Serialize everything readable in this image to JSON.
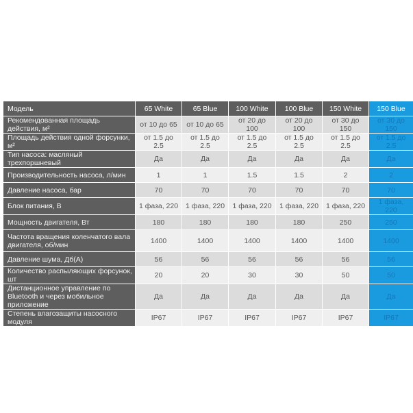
{
  "table": {
    "header": [
      "Модель",
      "65 White",
      "65 Blue",
      "100 White",
      "100 Blue",
      "150 White",
      "150 Blue"
    ],
    "highlight_color": "#1a9be0",
    "rows": [
      {
        "label": "Рекомендованная площадь действия, м²",
        "values": [
          "от 10 до 65",
          "от 10 до 65",
          "от 20 до 100",
          "от 20 до 100",
          "от 30 до 150",
          "от 30 до 150"
        ]
      },
      {
        "label": "Площадь действия одной форсунки, м²",
        "values": [
          "от 1.5 до 2.5",
          "от 1.5 до 2.5",
          "от 1.5 до 2.5",
          "от 1.5 до 2.5",
          "от 1.5 до 2.5",
          "от 1.5 до 2.5"
        ]
      },
      {
        "label": "Тип насоса: масляный трехпоршневый",
        "values": [
          "Да",
          "Да",
          "Да",
          "Да",
          "Да",
          "Да"
        ]
      },
      {
        "label": "Производительность насоса, л/мин",
        "values": [
          "1",
          "1",
          "1.5",
          "1.5",
          "2",
          "2"
        ]
      },
      {
        "label": "Давление насоса, бар",
        "values": [
          "70",
          "70",
          "70",
          "70",
          "70",
          "70"
        ]
      },
      {
        "label": "Блок питания, В",
        "values": [
          "1 фаза, 220",
          "1 фаза, 220",
          "1 фаза, 220",
          "1 фаза, 220",
          "1 фаза, 220",
          "1 фаза, 220"
        ]
      },
      {
        "label": "Мощность двигателя, Вт",
        "values": [
          "180",
          "180",
          "180",
          "180",
          "250",
          "250"
        ]
      },
      {
        "label": "Частота вращения коленчатого вала двигателя, об/мин",
        "values": [
          "1400",
          "1400",
          "1400",
          "1400",
          "1400",
          "1400"
        ]
      },
      {
        "label": "Давление шума, Дб(А)",
        "values": [
          "56",
          "56",
          "56",
          "56",
          "56",
          "56"
        ]
      },
      {
        "label": "Количество распыляющих форсунок, шт",
        "values": [
          "20",
          "20",
          "30",
          "30",
          "50",
          "50"
        ]
      },
      {
        "label": "Дистанционное управление по Bluetooth и через мобильное приложение",
        "values": [
          "Да",
          "Да",
          "Да",
          "Да",
          "Да",
          "Да"
        ]
      },
      {
        "label": "Степень влагозащиты насосного модуля",
        "values": [
          "IP67",
          "IP67",
          "IP67",
          "IP67",
          "IP67",
          "IP67"
        ]
      }
    ]
  }
}
